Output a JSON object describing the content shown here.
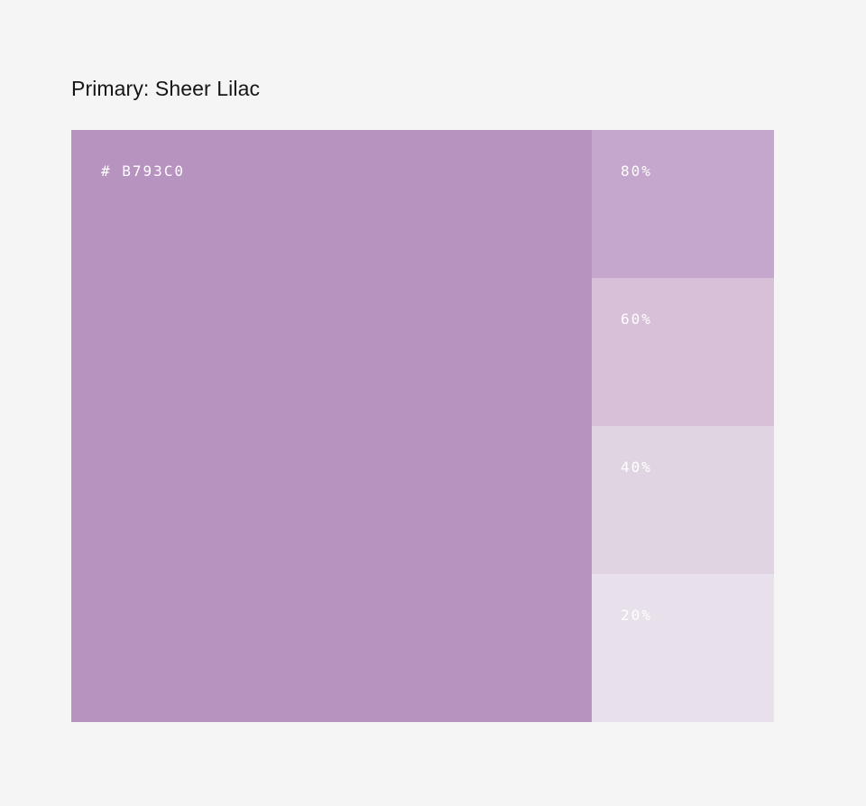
{
  "title": "Primary: Sheer Lilac",
  "primary": {
    "hex_label": "# B793C0",
    "color": "#b793c0"
  },
  "tints": [
    {
      "label": "80%",
      "color": "#c5a6cc"
    },
    {
      "label": "60%",
      "color": "#d7c0d8"
    },
    {
      "label": "40%",
      "color": "#e0d4e3"
    },
    {
      "label": "20%",
      "color": "#e8e0ea"
    }
  ]
}
